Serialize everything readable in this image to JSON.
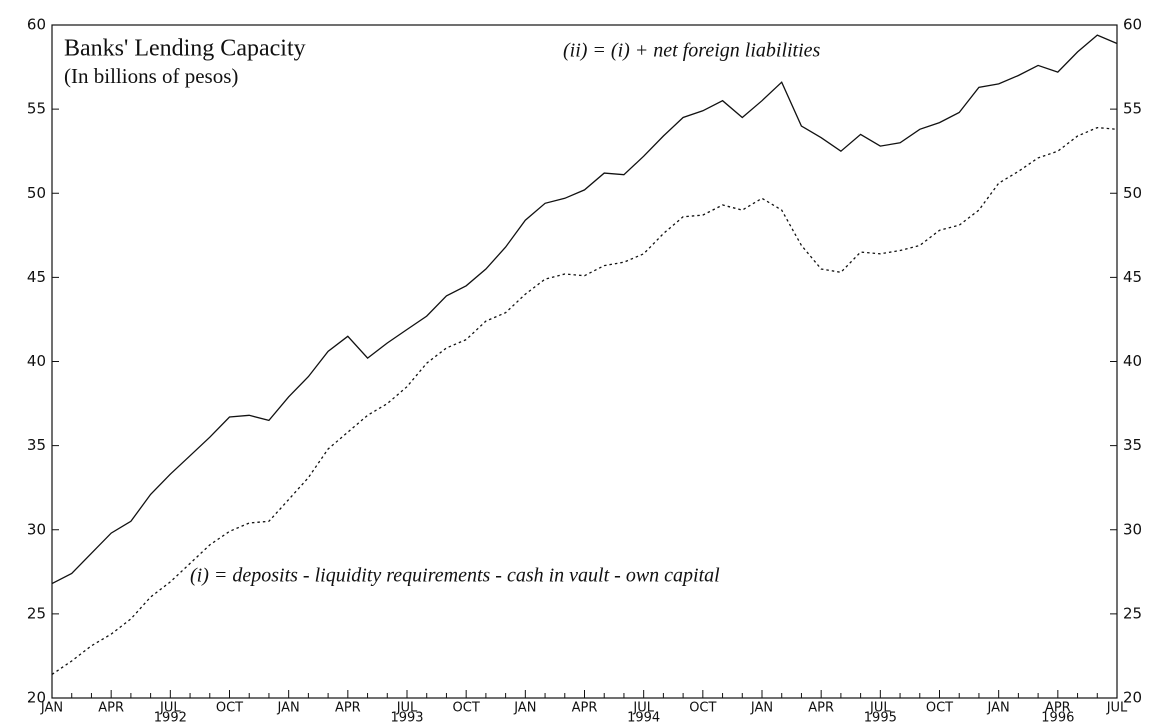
{
  "chart_data": {
    "type": "line",
    "title": "Banks' Lending Capacity",
    "subtitle": "(In billions of pesos)",
    "categories": [
      "JAN",
      null,
      null,
      "APR",
      null,
      null,
      "JUL",
      null,
      null,
      "OCT",
      null,
      null,
      "JAN",
      null,
      null,
      "APR",
      null,
      null,
      "JUL",
      null,
      null,
      "OCT",
      null,
      null,
      "JAN",
      null,
      null,
      "APR",
      null,
      null,
      "JUL",
      null,
      null,
      "OCT",
      null,
      null,
      "JAN",
      null,
      null,
      "APR",
      null,
      null,
      "JUL",
      null,
      null,
      "OCT",
      null,
      null,
      "JAN",
      null,
      null,
      "APR",
      null,
      null,
      "JUL"
    ],
    "year_labels": [
      null,
      null,
      null,
      null,
      null,
      null,
      "1992",
      null,
      null,
      null,
      null,
      null,
      null,
      null,
      null,
      null,
      null,
      null,
      "1993",
      null,
      null,
      null,
      null,
      null,
      null,
      null,
      null,
      null,
      null,
      null,
      "1994",
      null,
      null,
      null,
      null,
      null,
      null,
      null,
      null,
      null,
      null,
      null,
      "1995",
      null,
      null,
      null,
      null,
      null,
      null,
      null,
      null,
      "1996",
      null,
      null,
      null
    ],
    "series": [
      {
        "name": "(ii) = (i) + net foreign liabilities",
        "color": "#111111",
        "dash": "solid",
        "values": [
          26.8,
          27.4,
          28.6,
          29.8,
          30.5,
          32.1,
          33.3,
          34.4,
          35.5,
          36.7,
          36.8,
          36.5,
          37.9,
          39.1,
          40.6,
          41.5,
          40.2,
          41.1,
          41.9,
          42.7,
          43.9,
          44.5,
          45.5,
          46.8,
          48.4,
          49.4,
          49.7,
          50.2,
          51.2,
          51.1,
          52.2,
          53.4,
          54.5,
          54.9,
          55.5,
          54.5,
          55.5,
          56.6,
          54.0,
          53.3,
          52.5,
          53.5,
          52.8,
          53.0,
          53.8,
          54.2,
          54.8,
          56.3,
          56.5,
          57.0,
          57.6,
          57.2,
          58.4,
          59.4,
          58.9
        ]
      },
      {
        "name": "(i) = deposits - liquidity requirements - cash in vault - own capital",
        "color": "#111111",
        "dash": "dotted",
        "values": [
          21.4,
          22.2,
          23.1,
          23.8,
          24.7,
          26.0,
          26.9,
          28.0,
          29.1,
          29.9,
          30.4,
          30.5,
          31.8,
          33.1,
          34.8,
          35.8,
          36.8,
          37.5,
          38.5,
          39.9,
          40.8,
          41.3,
          42.4,
          42.9,
          44.0,
          44.9,
          45.2,
          45.1,
          45.7,
          45.9,
          46.4,
          47.6,
          48.6,
          48.7,
          49.3,
          49.0,
          49.7,
          49.0,
          46.9,
          45.5,
          45.3,
          46.5,
          46.4,
          46.6,
          46.9,
          47.8,
          48.1,
          49.0,
          50.6,
          51.3,
          52.1,
          52.5,
          53.4,
          53.9,
          53.8
        ]
      }
    ],
    "ylim": [
      20,
      60
    ],
    "yticks": [
      20,
      25,
      30,
      35,
      40,
      45,
      50,
      55,
      60
    ],
    "y2lim": [
      20,
      60
    ],
    "y2ticks": [
      20,
      25,
      30,
      35,
      40,
      45,
      50,
      55,
      60
    ],
    "grid": false
  }
}
